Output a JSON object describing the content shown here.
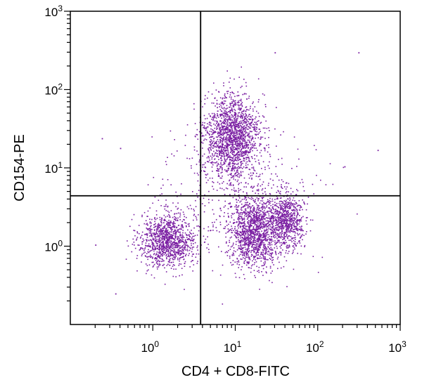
{
  "chart_data": {
    "type": "scatter",
    "title": "",
    "xlabel": "CD4 + CD8-FITC",
    "ylabel": "CD154-PE",
    "x_scale": "log",
    "y_scale": "log",
    "xlim": [
      0.1,
      1000
    ],
    "ylim": [
      0.1,
      1000
    ],
    "x_ticks": [
      {
        "base": "10",
        "exp": "0",
        "value": 1
      },
      {
        "base": "10",
        "exp": "1",
        "value": 10
      },
      {
        "base": "10",
        "exp": "2",
        "value": 100
      },
      {
        "base": "10",
        "exp": "3",
        "value": 1000
      }
    ],
    "y_ticks": [
      {
        "base": "10",
        "exp": "0",
        "value": 1
      },
      {
        "base": "10",
        "exp": "1",
        "value": 10
      },
      {
        "base": "10",
        "exp": "2",
        "value": 100
      },
      {
        "base": "10",
        "exp": "3",
        "value": 1000
      }
    ],
    "quadrant_gates": {
      "x": 3.8,
      "y": 4.4
    },
    "grid": false,
    "point_color": "#7a1fa2",
    "clusters": [
      {
        "name": "double-negative",
        "center": [
          1.5,
          1.2
        ],
        "count": 1100
      },
      {
        "name": "CD4/CD8-positive CD154-positive",
        "center": [
          9,
          25
        ],
        "count": 1700
      },
      {
        "name": "CD4/CD8-positive CD154-negative",
        "center": [
          17,
          1.6
        ],
        "count": 1400
      },
      {
        "name": "CD4/CD8-positive CD154-negative bright",
        "center": [
          42,
          2.1
        ],
        "count": 700
      },
      {
        "name": "scattered background",
        "center": [
          10,
          4
        ],
        "count": 350
      }
    ],
    "outliers": [
      [
        0.24,
        24
      ],
      [
        0.4,
        18
      ],
      [
        310,
        300
      ],
      [
        30,
        300
      ],
      [
        530,
        17
      ],
      [
        210,
        10.5
      ],
      [
        0.2,
        1.05
      ],
      [
        0.35,
        0.25
      ]
    ]
  }
}
